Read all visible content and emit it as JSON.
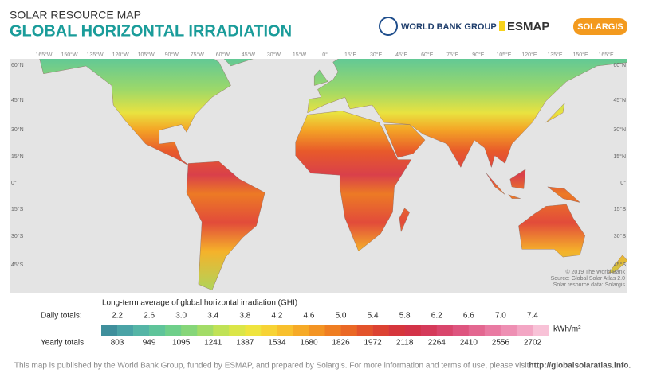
{
  "header": {
    "subtitle": "SOLAR RESOURCE MAP",
    "title": "GLOBAL HORIZONTAL IRRADIATION",
    "logos": [
      "WORLD BANK GROUP",
      "ESMAP",
      "SOLARGIS"
    ]
  },
  "map": {
    "longitudes": [
      "165°W",
      "150°W",
      "135°W",
      "120°W",
      "105°W",
      "90°W",
      "75°W",
      "60°W",
      "45°W",
      "30°W",
      "15°W",
      "0°",
      "15°E",
      "30°E",
      "45°E",
      "60°E",
      "75°E",
      "90°E",
      "105°E",
      "120°E",
      "135°E",
      "150°E",
      "165°E"
    ],
    "latitudes": [
      "60°N",
      "45°N",
      "30°N",
      "15°N",
      "0°",
      "15°S",
      "30°S",
      "45°S"
    ],
    "credits": [
      "© 2019 The World Bank",
      "Source: Global Solar Atlas 2.0",
      "Solar resource data: Solargis"
    ]
  },
  "legend": {
    "title": "Long-term average of global horizontal irradiation (GHI)",
    "daily_label": "Daily totals:",
    "daily": [
      "2.2",
      "2.6",
      "3.0",
      "3.4",
      "3.8",
      "4.2",
      "4.6",
      "5.0",
      "5.4",
      "5.8",
      "6.2",
      "6.6",
      "7.0",
      "7.4"
    ],
    "unit": "kWh/m²",
    "yearly_label": "Yearly totals:",
    "yearly": [
      "803",
      "949",
      "1095",
      "1241",
      "1387",
      "1534",
      "1680",
      "1826",
      "1972",
      "2118",
      "2264",
      "2410",
      "2556",
      "2702"
    ],
    "colors": [
      "#3f8f9c",
      "#4aa3a6",
      "#55b5a6",
      "#5fc49a",
      "#6fcf8a",
      "#86d679",
      "#a3dc67",
      "#c0e256",
      "#dbe648",
      "#efe43e",
      "#f7d335",
      "#f8c02d",
      "#f6aa27",
      "#f39423",
      "#ef7e22",
      "#ea6825",
      "#e3532b",
      "#dc4232",
      "#d6363c",
      "#d33348",
      "#d53a5a",
      "#d9466c",
      "#de557f",
      "#e36790",
      "#e97aa2",
      "#ee8fb3",
      "#f3a6c4",
      "#f8c2d7"
    ]
  },
  "footer": {
    "text": "This map is published by the World Bank Group, funded by ESMAP, and prepared by Solargis. For more information and terms of use, please visit ",
    "link": "http://globalsolaratlas.info."
  }
}
